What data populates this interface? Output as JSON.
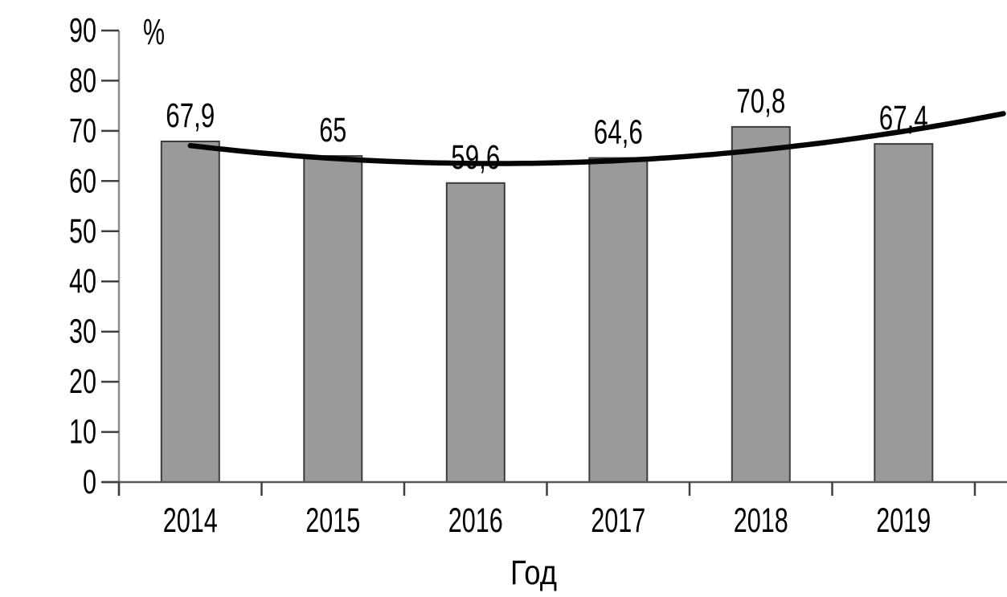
{
  "chart_data": {
    "type": "bar",
    "title": "",
    "unit_label": "%",
    "xlabel": "Год",
    "categories": [
      "2014",
      "2015",
      "2016",
      "2017",
      "2018",
      "2019"
    ],
    "values": [
      67.9,
      65,
      59.6,
      64.6,
      70.8,
      67.4
    ],
    "value_labels": [
      "67,9",
      "65",
      "59,6",
      "64,6",
      "70,8",
      "67,4"
    ],
    "ylim": [
      0,
      90
    ],
    "ytick_step": 10,
    "ytick_labels": [
      "0",
      "10",
      "20",
      "30",
      "40",
      "50",
      "60",
      "70",
      "80",
      "90"
    ],
    "grid": false,
    "legend": "none",
    "trendline": {
      "type": "polynomial",
      "order": 2,
      "coefficients": {
        "a": 0.7837,
        "b": -4.917,
        "c": 71.208
      },
      "t_range": [
        1,
        6.72
      ]
    }
  },
  "colors": {
    "background": "#ffffff",
    "bar_fill": "#9a9a9a",
    "bar_border": "#3d3d3d",
    "y_axis_line": "#8c8c8c",
    "x_axis_line": "#595959",
    "tick_mark": "#3f3f3f",
    "text": "#000000",
    "trend_line": "#050505"
  }
}
